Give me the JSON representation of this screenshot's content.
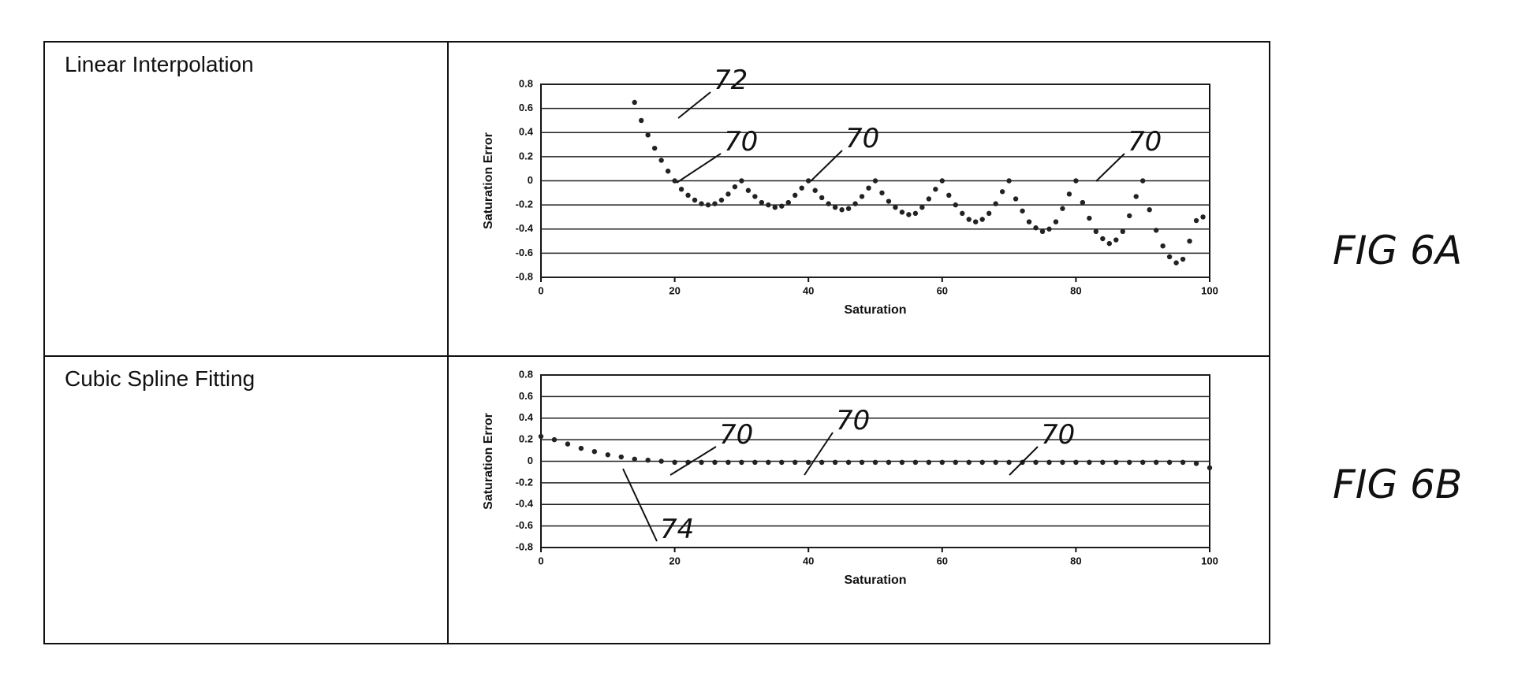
{
  "chart_data": [
    {
      "type": "scatter",
      "title": "Linear Interpolation",
      "figure_label": "FIG 6A",
      "x_label": "Saturation",
      "y_label": "Saturation Error",
      "x": [
        14,
        15,
        16,
        17,
        18,
        19,
        20,
        21,
        22,
        23,
        24,
        25,
        26,
        27,
        28,
        29,
        30,
        31,
        32,
        33,
        34,
        35,
        36,
        37,
        38,
        39,
        40,
        41,
        42,
        43,
        44,
        45,
        46,
        47,
        48,
        49,
        50,
        51,
        52,
        53,
        54,
        55,
        56,
        57,
        58,
        59,
        60,
        61,
        62,
        63,
        64,
        65,
        66,
        67,
        68,
        69,
        70,
        71,
        72,
        73,
        74,
        75,
        76,
        77,
        78,
        79,
        80,
        81,
        82,
        83,
        84,
        85,
        86,
        87,
        88,
        89,
        90,
        91,
        92,
        93,
        94,
        95,
        96,
        97,
        98,
        99
      ],
      "values": [
        0.65,
        0.5,
        0.38,
        0.27,
        0.17,
        0.08,
        0,
        -0.07,
        -0.12,
        -0.16,
        -0.19,
        -0.2,
        -0.19,
        -0.16,
        -0.11,
        -0.05,
        0,
        -0.08,
        -0.13,
        -0.18,
        -0.2,
        -0.22,
        -0.21,
        -0.18,
        -0.12,
        -0.06,
        0,
        -0.08,
        -0.14,
        -0.19,
        -0.22,
        -0.24,
        -0.23,
        -0.19,
        -0.13,
        -0.06,
        0,
        -0.1,
        -0.17,
        -0.22,
        -0.26,
        -0.28,
        -0.27,
        -0.22,
        -0.15,
        -0.07,
        0,
        -0.12,
        -0.2,
        -0.27,
        -0.32,
        -0.34,
        -0.32,
        -0.27,
        -0.19,
        -0.09,
        0,
        -0.15,
        -0.25,
        -0.34,
        -0.39,
        -0.42,
        -0.4,
        -0.34,
        -0.23,
        -0.11,
        0,
        -0.18,
        -0.31,
        -0.42,
        -0.48,
        -0.52,
        -0.49,
        -0.42,
        -0.29,
        -0.13,
        0,
        -0.24,
        -0.41,
        -0.54,
        -0.63,
        -0.68,
        -0.65,
        -0.5,
        -0.33,
        -0.3
      ],
      "color": "#222222",
      "xlim": [
        0,
        100
      ],
      "xticks": [
        0,
        20,
        40,
        60,
        80,
        100
      ],
      "ylim": [
        -0.8,
        0.8
      ],
      "yticks": [
        -0.8,
        -0.6,
        -0.4,
        -0.2,
        0,
        0.2,
        0.4,
        0.6,
        0.8
      ],
      "grid": true,
      "annotations": [
        "72",
        "70",
        "70",
        "70"
      ]
    },
    {
      "type": "scatter",
      "title": "Cubic Spline Fitting",
      "figure_label": "FIG 6B",
      "x_label": "Saturation",
      "y_label": "Saturation Error",
      "x": [
        0,
        2,
        4,
        6,
        8,
        10,
        12,
        14,
        16,
        18,
        20,
        22,
        24,
        26,
        28,
        30,
        32,
        34,
        36,
        38,
        40,
        42,
        44,
        46,
        48,
        50,
        52,
        54,
        56,
        58,
        60,
        62,
        64,
        66,
        68,
        70,
        72,
        74,
        76,
        78,
        80,
        82,
        84,
        86,
        88,
        90,
        92,
        94,
        96,
        98,
        100
      ],
      "values": [
        0.23,
        0.2,
        0.16,
        0.12,
        0.09,
        0.06,
        0.04,
        0.02,
        0.01,
        0,
        -0.01,
        -0.01,
        -0.01,
        -0.01,
        -0.01,
        -0.01,
        -0.01,
        -0.01,
        -0.01,
        -0.01,
        -0.01,
        -0.01,
        -0.01,
        -0.01,
        -0.01,
        -0.01,
        -0.01,
        -0.01,
        -0.01,
        -0.01,
        -0.01,
        -0.01,
        -0.01,
        -0.01,
        -0.01,
        -0.01,
        -0.01,
        -0.01,
        -0.01,
        -0.01,
        -0.01,
        -0.01,
        -0.01,
        -0.01,
        -0.01,
        -0.01,
        -0.01,
        -0.01,
        -0.01,
        -0.02,
        -0.06
      ],
      "color": "#222222",
      "xlim": [
        0,
        100
      ],
      "xticks": [
        0,
        20,
        40,
        60,
        80,
        100
      ],
      "ylim": [
        -0.8,
        0.8
      ],
      "yticks": [
        -0.8,
        -0.6,
        -0.4,
        -0.2,
        0,
        0.2,
        0.4,
        0.6,
        0.8
      ],
      "grid": true,
      "annotations": [
        "70",
        "70",
        "70",
        "74"
      ]
    }
  ]
}
